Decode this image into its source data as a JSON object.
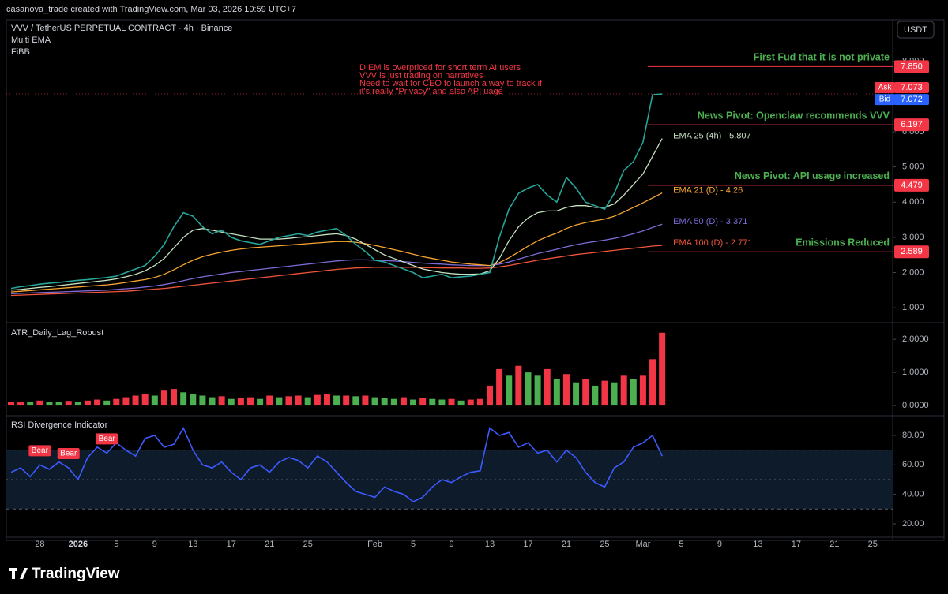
{
  "header": "casanova_trade created with TradingView.com, Mar 03, 2026 10:59 UTC+7",
  "footer": "TradingView",
  "currency": "USDT",
  "chart_data": [
    {
      "type": "line",
      "legend": [
        "VVV / TetherUS PERPETUAL CONTRACT · 4h · Binance",
        "Multi EMA",
        "FiBB"
      ],
      "note": [
        "DIEM is overpriced for short term AI users",
        "VVV is just trading on narratives",
        "Need to wait for CEO to launch a way to track if",
        "it's really \"Privacy\" and also API uage"
      ],
      "ylim": [
        0.6,
        9.18
      ],
      "yticks": [
        {
          "value": 1,
          "label": "1.000"
        },
        {
          "value": 2,
          "label": "2.000"
        },
        {
          "value": 3,
          "label": "3.000"
        },
        {
          "value": 4,
          "label": "4.000"
        },
        {
          "value": 5,
          "label": "5.000"
        },
        {
          "value": 6,
          "label": "6.000"
        },
        {
          "value": 8,
          "label": "8.000"
        }
      ],
      "series": [
        {
          "color": "#26a69a",
          "values": [
            1.55,
            1.6,
            1.63,
            1.67,
            1.7,
            1.72,
            1.75,
            1.78,
            1.8,
            1.83,
            1.86,
            1.9,
            2.0,
            2.1,
            2.2,
            2.46,
            2.8,
            3.3,
            3.7,
            3.6,
            3.3,
            3.1,
            3.2,
            3.0,
            2.9,
            2.85,
            2.8,
            2.9,
            3.0,
            3.05,
            3.1,
            3.05,
            3.15,
            3.2,
            3.25,
            3.05,
            2.8,
            2.6,
            2.35,
            2.3,
            2.2,
            2.1,
            2.0,
            1.85,
            1.9,
            1.95,
            1.85,
            1.88,
            1.9,
            1.95,
            2.0,
            3.0,
            3.8,
            4.25,
            4.4,
            4.5,
            4.2,
            4.0,
            4.7,
            4.4,
            4.0,
            3.9,
            3.8,
            4.25,
            4.9,
            5.15,
            5.7,
            7.05,
            7.073,
            null,
            null,
            null,
            null,
            null,
            null,
            null,
            null,
            null,
            null,
            null,
            null,
            null,
            null,
            null,
            null,
            null,
            null,
            null,
            null,
            null,
            null,
            null,
            null
          ]
        },
        {
          "label": "EMA 25 (4h) - 5.807",
          "color": "#c5e1c0",
          "values": [
            1.5,
            1.52,
            1.55,
            1.58,
            1.6,
            1.63,
            1.66,
            1.69,
            1.72,
            1.75,
            1.78,
            1.82,
            1.88,
            1.95,
            2.05,
            2.2,
            2.4,
            2.7,
            3.0,
            3.2,
            3.25,
            3.2,
            3.15,
            3.1,
            3.05,
            3.0,
            2.95,
            2.95,
            2.95,
            2.97,
            3.0,
            3.02,
            3.05,
            3.08,
            3.1,
            3.05,
            2.95,
            2.8,
            2.65,
            2.5,
            2.4,
            2.3,
            2.2,
            2.1,
            2.05,
            2.0,
            1.97,
            1.95,
            1.95,
            1.96,
            2.05,
            2.4,
            2.9,
            3.3,
            3.55,
            3.7,
            3.75,
            3.75,
            3.85,
            3.9,
            3.9,
            3.85,
            3.85,
            3.95,
            4.2,
            4.5,
            4.8,
            5.3,
            5.807,
            null,
            null,
            null,
            null,
            null,
            null,
            null,
            null,
            null,
            null,
            null,
            null,
            null,
            null,
            null,
            null,
            null,
            null,
            null,
            null,
            null,
            null,
            null,
            null
          ]
        },
        {
          "label": "EMA 21 (D) - 4.26",
          "color": "#f7a531",
          "values": [
            1.45,
            1.47,
            1.49,
            1.51,
            1.53,
            1.55,
            1.57,
            1.59,
            1.61,
            1.63,
            1.65,
            1.68,
            1.72,
            1.76,
            1.8,
            1.86,
            1.95,
            2.08,
            2.22,
            2.35,
            2.45,
            2.52,
            2.58,
            2.63,
            2.67,
            2.7,
            2.72,
            2.74,
            2.76,
            2.78,
            2.8,
            2.82,
            2.84,
            2.86,
            2.88,
            2.88,
            2.86,
            2.82,
            2.77,
            2.71,
            2.65,
            2.59,
            2.52,
            2.45,
            2.4,
            2.35,
            2.3,
            2.27,
            2.24,
            2.22,
            2.2,
            2.28,
            2.42,
            2.58,
            2.75,
            2.9,
            3.02,
            3.12,
            3.25,
            3.35,
            3.42,
            3.47,
            3.52,
            3.6,
            3.72,
            3.85,
            3.98,
            4.12,
            4.26,
            null,
            null,
            null,
            null,
            null,
            null,
            null,
            null,
            null,
            null,
            null,
            null,
            null,
            null,
            null,
            null,
            null,
            null,
            null,
            null,
            null,
            null,
            null,
            null
          ]
        },
        {
          "label": "EMA 50 (D) - 3.371",
          "color": "#7e6bd6",
          "values": [
            1.4,
            1.41,
            1.42,
            1.43,
            1.44,
            1.45,
            1.46,
            1.47,
            1.48,
            1.49,
            1.5,
            1.52,
            1.54,
            1.56,
            1.59,
            1.62,
            1.66,
            1.71,
            1.77,
            1.83,
            1.88,
            1.92,
            1.96,
            2.0,
            2.03,
            2.06,
            2.09,
            2.12,
            2.15,
            2.18,
            2.21,
            2.24,
            2.27,
            2.3,
            2.33,
            2.35,
            2.36,
            2.36,
            2.35,
            2.34,
            2.33,
            2.31,
            2.29,
            2.27,
            2.25,
            2.24,
            2.22,
            2.21,
            2.2,
            2.2,
            2.2,
            2.24,
            2.3,
            2.38,
            2.46,
            2.54,
            2.6,
            2.66,
            2.73,
            2.79,
            2.84,
            2.88,
            2.92,
            2.97,
            3.03,
            3.1,
            3.18,
            3.28,
            3.371,
            null,
            null,
            null,
            null,
            null,
            null,
            null,
            null,
            null,
            null,
            null,
            null,
            null,
            null,
            null,
            null,
            null,
            null,
            null,
            null,
            null,
            null,
            null,
            null
          ]
        },
        {
          "label": "EMA 100 (D) - 2.771",
          "color": "#f0553c",
          "values": [
            1.35,
            1.36,
            1.37,
            1.38,
            1.39,
            1.4,
            1.41,
            1.42,
            1.43,
            1.44,
            1.45,
            1.46,
            1.47,
            1.49,
            1.51,
            1.53,
            1.55,
            1.58,
            1.61,
            1.64,
            1.67,
            1.7,
            1.73,
            1.76,
            1.79,
            1.82,
            1.85,
            1.88,
            1.91,
            1.94,
            1.97,
            2.0,
            2.03,
            2.06,
            2.09,
            2.11,
            2.13,
            2.14,
            2.15,
            2.15,
            2.15,
            2.15,
            2.15,
            2.14,
            2.14,
            2.13,
            2.13,
            2.13,
            2.12,
            2.12,
            2.13,
            2.16,
            2.2,
            2.25,
            2.3,
            2.35,
            2.39,
            2.43,
            2.47,
            2.51,
            2.54,
            2.57,
            2.6,
            2.63,
            2.66,
            2.69,
            2.72,
            2.75,
            2.771,
            null,
            null,
            null,
            null,
            null,
            null,
            null,
            null,
            null,
            null,
            null,
            null,
            null,
            null,
            null,
            null,
            null,
            null,
            null,
            null,
            null,
            null,
            null,
            null
          ]
        }
      ],
      "levels": [
        {
          "value": 7.85,
          "label": "7.850",
          "text": "First Fud that it is not private"
        },
        {
          "value": 6.197,
          "label": "6.197",
          "text": "News Pivot: Openclaw recommends VVV"
        },
        {
          "value": 4.479,
          "label": "4.479",
          "text": "News Pivot: API usage increased"
        },
        {
          "value": 2.589,
          "label": "2.589",
          "text": "Emissions Reduced"
        }
      ],
      "quote": [
        {
          "name": "Ask",
          "value": 7.073,
          "label": "7.073",
          "color": "#f23645"
        },
        {
          "name": "Bid",
          "value": 7.072,
          "label": "7.072",
          "color": "#2962ff"
        }
      ]
    },
    {
      "type": "bar",
      "title": "ATR_Daily_Lag_Robust",
      "ylim": [
        -0.26,
        2.48
      ],
      "yticks": [
        {
          "value": 0,
          "label": "0.0000"
        },
        {
          "value": 1,
          "label": "1.0000"
        },
        {
          "value": 2,
          "label": "2.0000"
        }
      ],
      "colors": {
        "up": "#f23645",
        "down": "#4caf50"
      },
      "values": [
        0.1,
        0.12,
        0.1,
        0.15,
        0.12,
        0.1,
        0.14,
        0.12,
        0.15,
        0.18,
        0.15,
        0.2,
        0.25,
        0.3,
        0.35,
        0.3,
        0.45,
        0.5,
        0.4,
        0.35,
        0.3,
        0.25,
        0.28,
        0.2,
        0.22,
        0.25,
        0.2,
        0.3,
        0.25,
        0.28,
        0.3,
        0.25,
        0.32,
        0.35,
        0.3,
        0.3,
        0.28,
        0.3,
        0.25,
        0.22,
        0.2,
        0.25,
        0.18,
        0.22,
        0.2,
        0.18,
        0.2,
        0.15,
        0.18,
        0.2,
        0.6,
        1.1,
        0.9,
        1.2,
        1.0,
        0.9,
        1.1,
        0.8,
        0.95,
        0.7,
        0.8,
        0.6,
        0.75,
        0.7,
        0.9,
        0.8,
        0.9,
        1.4,
        2.2,
        null,
        null,
        null,
        null,
        null,
        null,
        null,
        null,
        null,
        null,
        null,
        null,
        null,
        null,
        null,
        null,
        null,
        null,
        null,
        null,
        null,
        null,
        null,
        null
      ]
    },
    {
      "type": "line",
      "title": "RSI Divergence Indicator",
      "color": "#3d5afe",
      "categories": [
        null,
        null,
        null,
        "28",
        null,
        null,
        null,
        "2026",
        null,
        null,
        null,
        "5",
        null,
        null,
        null,
        "9",
        null,
        null,
        null,
        "13",
        null,
        null,
        null,
        "17",
        null,
        null,
        null,
        "21",
        null,
        null,
        null,
        "25",
        null,
        null,
        null,
        null,
        null,
        null,
        "Feb",
        null,
        null,
        null,
        "5",
        null,
        null,
        null,
        "9",
        null,
        null,
        null,
        "13",
        null,
        null,
        null,
        "17",
        null,
        null,
        null,
        "21",
        null,
        null,
        null,
        "25",
        null,
        null,
        null,
        "Mar",
        null,
        null,
        null,
        "5",
        null,
        null,
        null,
        "9",
        null,
        null,
        null,
        "13",
        null,
        null,
        null,
        "17",
        null,
        null,
        null,
        "21",
        null,
        null,
        null,
        "25",
        null,
        null
      ],
      "ylim": [
        11.4,
        91.8
      ],
      "yticks": [
        {
          "value": 20,
          "label": "20.00"
        },
        {
          "value": 40,
          "label": "40.00"
        },
        {
          "value": 60,
          "label": "60.00"
        },
        {
          "value": 80,
          "label": "80.00"
        }
      ],
      "band": [
        30,
        70
      ],
      "midline": 50,
      "values": [
        55,
        58,
        52,
        60,
        57,
        62,
        58,
        50,
        65,
        72,
        68,
        75,
        70,
        66,
        78,
        80,
        72,
        74,
        85,
        70,
        60,
        58,
        62,
        55,
        50,
        58,
        60,
        55,
        62,
        65,
        63,
        58,
        66,
        62,
        55,
        48,
        42,
        40,
        38,
        45,
        42,
        40,
        35,
        38,
        45,
        50,
        48,
        52,
        55,
        56,
        85,
        80,
        82,
        72,
        75,
        68,
        70,
        62,
        70,
        65,
        55,
        48,
        45,
        58,
        62,
        72,
        75,
        80,
        66,
        null,
        null,
        null,
        null,
        null,
        null,
        null,
        null,
        null,
        null,
        null,
        null,
        null,
        null,
        null,
        null,
        null,
        null,
        null,
        null,
        null,
        null,
        null,
        null
      ],
      "signals": [
        null,
        null,
        null,
        "Bear",
        null,
        null,
        "Bear",
        null,
        null,
        null,
        "Bear",
        null,
        null,
        null,
        null,
        null,
        null,
        null,
        null,
        null,
        null,
        null,
        null,
        null,
        null,
        null,
        null,
        null,
        null,
        null,
        null,
        null,
        null,
        null,
        null,
        null,
        null,
        null,
        null,
        null,
        null,
        null,
        null,
        null,
        null,
        null,
        null,
        null,
        null,
        null,
        null,
        null,
        null,
        null,
        null,
        null,
        null,
        null,
        null,
        null,
        null,
        null,
        null,
        null,
        null,
        null,
        null,
        null,
        null,
        null,
        null,
        null,
        null,
        null,
        null,
        null,
        null,
        null,
        null,
        null,
        null,
        null,
        null,
        null,
        null,
        null,
        null,
        null,
        null,
        null,
        null,
        null,
        null
      ]
    }
  ]
}
